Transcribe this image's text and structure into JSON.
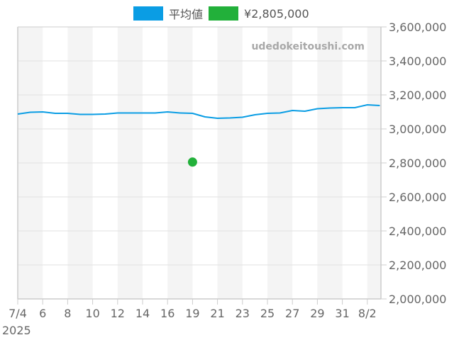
{
  "legend": {
    "items": [
      {
        "label": "平均値",
        "color": "#0a9de4"
      },
      {
        "label": "¥2,805,000",
        "color": "#22b03a"
      }
    ]
  },
  "watermark": "udedokeitoushi.com",
  "chart_data": {
    "type": "line",
    "title": "",
    "xlabel": "",
    "ylabel": "",
    "year_label": "2025",
    "ylim": [
      2000000,
      3600000
    ],
    "y_ticks": [
      "3,600,000",
      "3,400,000",
      "3,200,000",
      "3,000,000",
      "2,800,000",
      "2,600,000",
      "2,400,000",
      "2,200,000",
      "2,000,000"
    ],
    "x_tick_labels": [
      "7/4",
      "6",
      "8",
      "10",
      "12",
      "14",
      "16",
      "19",
      "21",
      "23",
      "25",
      "27",
      "29",
      "31",
      "8/2"
    ],
    "grid": true,
    "legend_position": "top",
    "series": [
      {
        "name": "平均値",
        "type": "line",
        "color": "#0a9de4",
        "values": [
          3087500,
          3097900,
          3100000,
          3091700,
          3091700,
          3085400,
          3085400,
          3087500,
          3093750,
          3093750,
          3093750,
          3093750,
          3100000,
          3093750,
          3091700,
          3070800,
          3062500,
          3064600,
          3068750,
          3083300,
          3091700,
          3093750,
          3108300,
          3104200,
          3118750,
          3122900,
          3125000,
          3125000,
          3141700,
          3137500
        ]
      },
      {
        "name": "¥2,805,000",
        "type": "scatter",
        "color": "#22b03a",
        "points": [
          {
            "x_index": 14,
            "value": 2805000
          }
        ]
      }
    ]
  }
}
